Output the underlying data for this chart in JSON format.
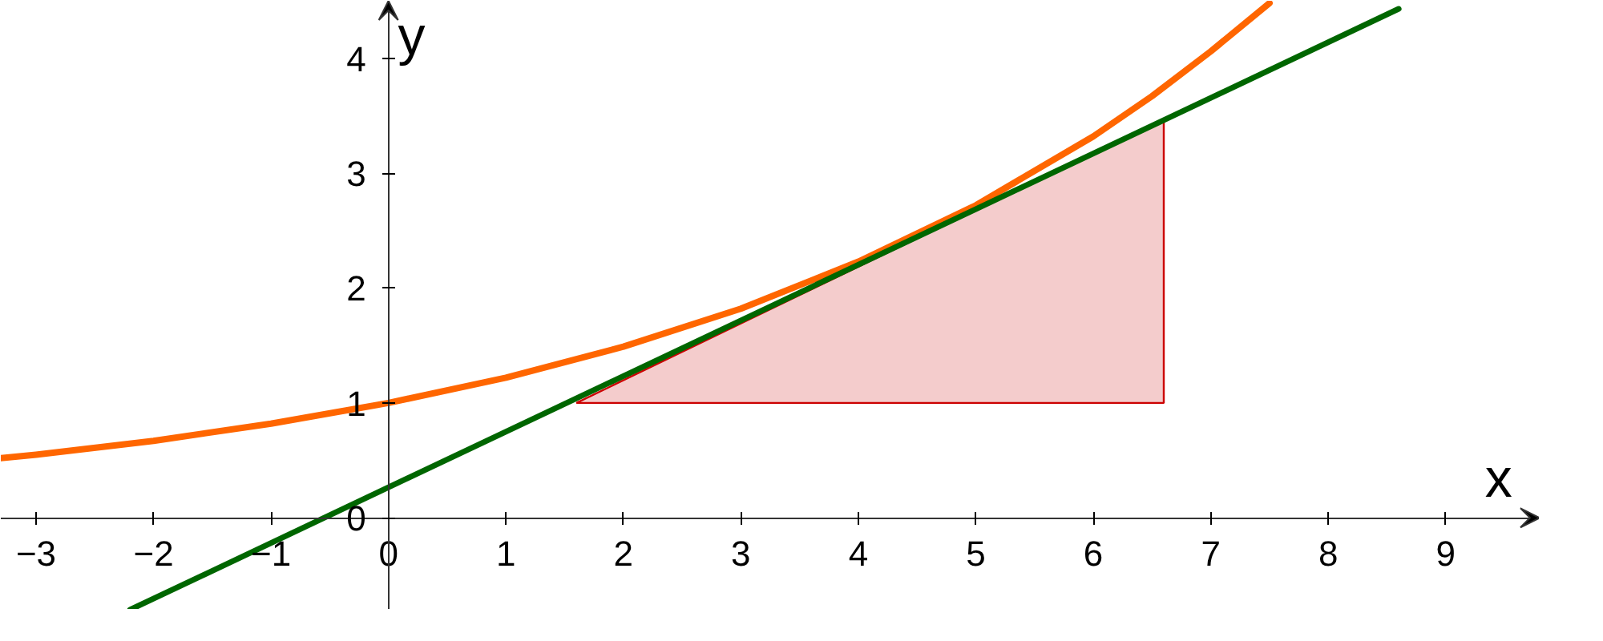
{
  "chart_data": {
    "type": "line",
    "xlabel": "x",
    "ylabel": "y",
    "xlim": [
      -3.3,
      9.8
    ],
    "ylim": [
      -0.8,
      4.5
    ],
    "xticks": [
      -3,
      -2,
      -1,
      0,
      1,
      2,
      3,
      4,
      5,
      6,
      7,
      8,
      9
    ],
    "yticks": [
      0,
      1,
      2,
      3,
      4
    ],
    "grid": false,
    "marker": "none",
    "line_style": "solid",
    "series": [
      {
        "type": "area",
        "color": "#f4cccc",
        "x": [
          1.6,
          6.6,
          6.6
        ],
        "values": [
          1,
          1,
          3.47
        ]
      },
      {
        "color": "#ff6600",
        "x": [
          -3.3,
          -3,
          -2,
          -1,
          0,
          1,
          2,
          3,
          4,
          5,
          6,
          6.5,
          7,
          7.5
        ],
        "values": [
          0.52,
          0.55,
          0.67,
          0.82,
          1,
          1.22,
          1.49,
          1.82,
          2.23,
          2.72,
          3.32,
          3.67,
          4.06,
          4.48
        ]
      },
      {
        "color": "#006600",
        "x": [
          -2.2,
          8.6
        ],
        "values": [
          -0.8,
          4.43
        ]
      }
    ]
  }
}
